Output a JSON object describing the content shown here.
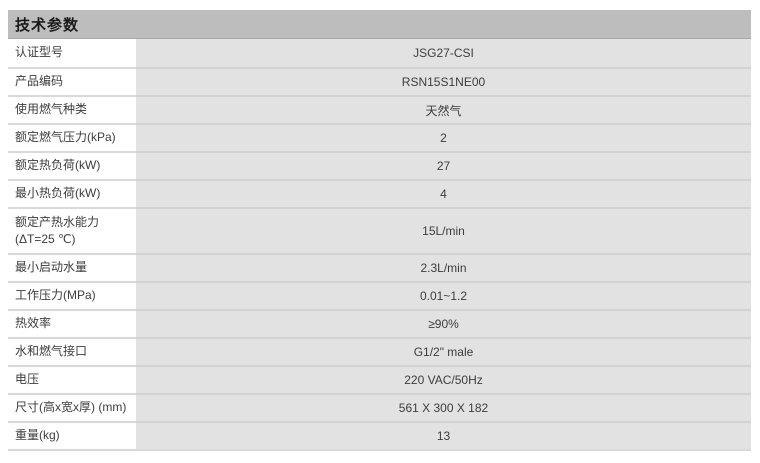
{
  "header": {
    "title": "技术参数"
  },
  "table": {
    "rows": [
      {
        "label": "认证型号",
        "value": "JSG27-CSI"
      },
      {
        "label": "产品编码",
        "value": "RSN15S1NE00"
      },
      {
        "label": "使用燃气种类",
        "value": "天然气"
      },
      {
        "label": "额定燃气压力(kPa)",
        "value": "2"
      },
      {
        "label": "额定热负荷(kW)",
        "value": "27"
      },
      {
        "label": "最小热负荷(kW)",
        "value": "4"
      },
      {
        "label": "额定产热水能力",
        "label_line2": "(ΔT=25 ℃)",
        "value": "15L/min"
      },
      {
        "label": "最小启动水量",
        "value": "2.3L/min"
      },
      {
        "label": "工作压力(MPa)",
        "value": "0.01~1.2"
      },
      {
        "label": "热效率",
        "value": "≥90%"
      },
      {
        "label": "水和燃气接口",
        "value": "G1/2\" male"
      },
      {
        "label": "电压",
        "value": "220 VAC/50Hz"
      },
      {
        "label": "尺寸(高x宽x厚) (mm)",
        "value": "561 X 300 X 182"
      },
      {
        "label": "重量(kg)",
        "value": "13"
      }
    ]
  },
  "colors": {
    "header_bar": "#bdbdbd",
    "header_edge": "#a8a8a8",
    "value_cell": "#e2e2e2",
    "separator_light": "#d9d9d9",
    "separator_dark": "#d2d2d2",
    "title_text": "#1a1a1a",
    "cell_text": "#3d3d3d"
  }
}
